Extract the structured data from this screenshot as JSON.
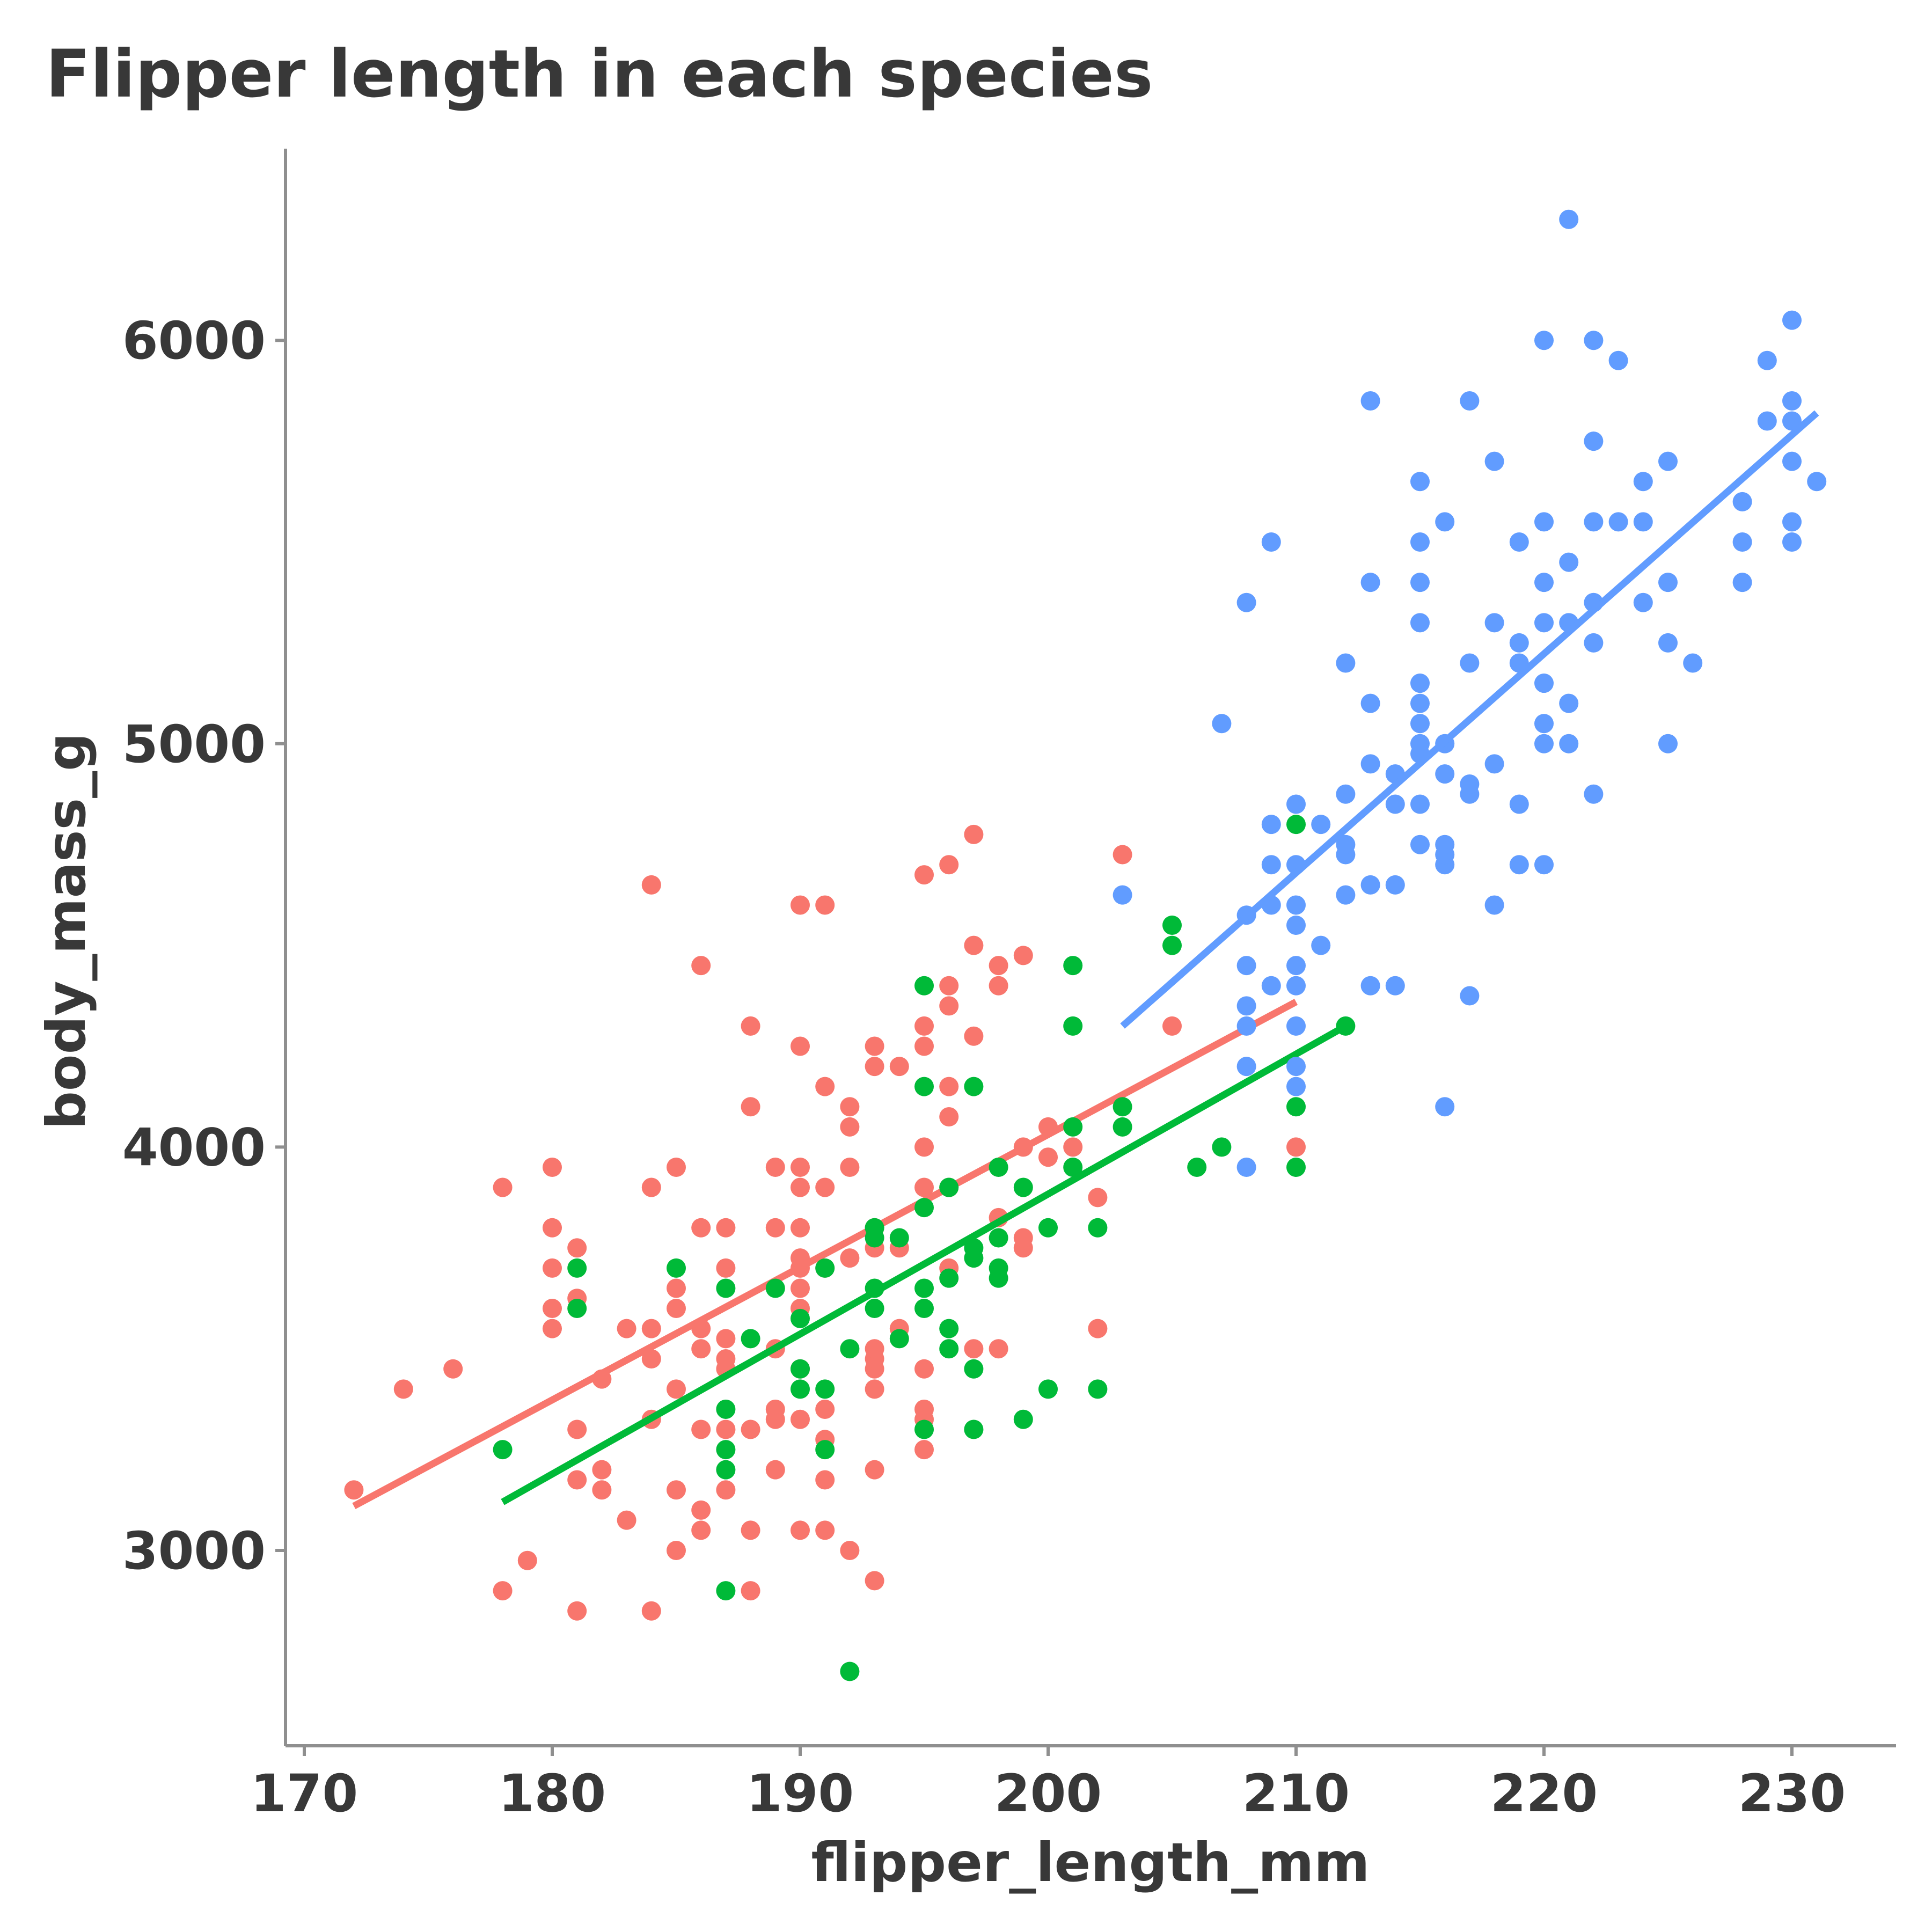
{
  "chart_data": {
    "type": "scatter",
    "title": "Flipper length in each species",
    "xlabel": "flipper_length_mm",
    "ylabel": "body_mass_g",
    "xlim": [
      169,
      234
    ],
    "ylim": [
      2550,
      6500
    ],
    "x_ticks": [
      170,
      180,
      190,
      200,
      210,
      220,
      230
    ],
    "y_ticks": [
      3000,
      4000,
      5000,
      6000
    ],
    "grid": false,
    "legend": "none",
    "series": [
      {
        "color": "#F8766D",
        "trend": [
          [
            172,
            3110
          ],
          [
            210,
            4360
          ]
        ],
        "points": [
          [
            172,
            3150
          ],
          [
            174,
            3400
          ],
          [
            176,
            3450
          ],
          [
            178,
            2900
          ],
          [
            178,
            3900
          ],
          [
            179,
            2975
          ],
          [
            180,
            3550
          ],
          [
            180,
            3600
          ],
          [
            180,
            3700
          ],
          [
            180,
            3800
          ],
          [
            180,
            3950
          ],
          [
            181,
            2850
          ],
          [
            181,
            3175
          ],
          [
            181,
            3300
          ],
          [
            181,
            3625
          ],
          [
            181,
            3750
          ],
          [
            182,
            3150
          ],
          [
            182,
            3200
          ],
          [
            182,
            3425
          ],
          [
            183,
            3075
          ],
          [
            183,
            3550
          ],
          [
            184,
            2850
          ],
          [
            184,
            3325
          ],
          [
            184,
            3475
          ],
          [
            184,
            3550
          ],
          [
            184,
            3900
          ],
          [
            184,
            4650
          ],
          [
            185,
            3000
          ],
          [
            185,
            3150
          ],
          [
            185,
            3400
          ],
          [
            185,
            3600
          ],
          [
            185,
            3650
          ],
          [
            185,
            3950
          ],
          [
            186,
            3050
          ],
          [
            186,
            3100
          ],
          [
            186,
            3300
          ],
          [
            186,
            3500
          ],
          [
            186,
            3550
          ],
          [
            186,
            3800
          ],
          [
            186,
            4450
          ],
          [
            187,
            3150
          ],
          [
            187,
            3300
          ],
          [
            187,
            3450
          ],
          [
            187,
            3475
          ],
          [
            187,
            3525
          ],
          [
            187,
            3700
          ],
          [
            187,
            3800
          ],
          [
            188,
            2900
          ],
          [
            188,
            3050
          ],
          [
            188,
            3300
          ],
          [
            188,
            4100
          ],
          [
            188,
            4300
          ],
          [
            189,
            3200
          ],
          [
            189,
            3325
          ],
          [
            189,
            3350
          ],
          [
            189,
            3500
          ],
          [
            189,
            3800
          ],
          [
            189,
            3950
          ],
          [
            190,
            3050
          ],
          [
            190,
            3325
          ],
          [
            190,
            3450
          ],
          [
            190,
            3600
          ],
          [
            190,
            3650
          ],
          [
            190,
            3700
          ],
          [
            190,
            3725
          ],
          [
            190,
            3800
          ],
          [
            190,
            3900
          ],
          [
            190,
            3950
          ],
          [
            190,
            4250
          ],
          [
            190,
            4600
          ],
          [
            191,
            3050
          ],
          [
            191,
            3175
          ],
          [
            191,
            3275
          ],
          [
            191,
            3350
          ],
          [
            191,
            3700
          ],
          [
            191,
            3900
          ],
          [
            191,
            4150
          ],
          [
            191,
            4600
          ],
          [
            192,
            3000
          ],
          [
            192,
            3725
          ],
          [
            192,
            3950
          ],
          [
            192,
            4050
          ],
          [
            192,
            4100
          ],
          [
            193,
            2925
          ],
          [
            193,
            3200
          ],
          [
            193,
            3400
          ],
          [
            193,
            3450
          ],
          [
            193,
            3475
          ],
          [
            193,
            3500
          ],
          [
            193,
            3750
          ],
          [
            193,
            3800
          ],
          [
            193,
            4200
          ],
          [
            193,
            4250
          ],
          [
            194,
            3550
          ],
          [
            194,
            3750
          ],
          [
            194,
            4200
          ],
          [
            195,
            3250
          ],
          [
            195,
            3325
          ],
          [
            195,
            3350
          ],
          [
            195,
            3450
          ],
          [
            195,
            3900
          ],
          [
            195,
            4000
          ],
          [
            195,
            4250
          ],
          [
            195,
            4300
          ],
          [
            195,
            4675
          ],
          [
            196,
            3700
          ],
          [
            196,
            3900
          ],
          [
            196,
            4075
          ],
          [
            196,
            4150
          ],
          [
            196,
            4350
          ],
          [
            196,
            4400
          ],
          [
            196,
            4700
          ],
          [
            197,
            3500
          ],
          [
            197,
            4275
          ],
          [
            197,
            4500
          ],
          [
            197,
            4775
          ],
          [
            198,
            3500
          ],
          [
            198,
            3825
          ],
          [
            198,
            4400
          ],
          [
            198,
            4450
          ],
          [
            199,
            3750
          ],
          [
            199,
            3775
          ],
          [
            199,
            4000
          ],
          [
            199,
            4475
          ],
          [
            200,
            3975
          ],
          [
            200,
            4050
          ],
          [
            201,
            4000
          ],
          [
            202,
            3550
          ],
          [
            202,
            3875
          ],
          [
            203,
            4725
          ],
          [
            205,
            4300
          ],
          [
            210,
            4000
          ]
        ]
      },
      {
        "color": "#00BA38",
        "trend": [
          [
            178,
            3120
          ],
          [
            212,
            4300
          ]
        ],
        "points": [
          [
            178,
            3250
          ],
          [
            181,
            3600
          ],
          [
            181,
            3700
          ],
          [
            185,
            3700
          ],
          [
            187,
            2900
          ],
          [
            187,
            3200
          ],
          [
            187,
            3250
          ],
          [
            187,
            3350
          ],
          [
            187,
            3650
          ],
          [
            188,
            3525
          ],
          [
            189,
            3650
          ],
          [
            190,
            3400
          ],
          [
            190,
            3450
          ],
          [
            190,
            3575
          ],
          [
            191,
            3250
          ],
          [
            191,
            3400
          ],
          [
            191,
            3700
          ],
          [
            192,
            2700
          ],
          [
            192,
            3500
          ],
          [
            193,
            3600
          ],
          [
            193,
            3650
          ],
          [
            193,
            3775
          ],
          [
            193,
            3800
          ],
          [
            194,
            3525
          ],
          [
            194,
            3775
          ],
          [
            195,
            3300
          ],
          [
            195,
            3600
          ],
          [
            195,
            3650
          ],
          [
            195,
            3850
          ],
          [
            195,
            4150
          ],
          [
            195,
            4400
          ],
          [
            196,
            3500
          ],
          [
            196,
            3550
          ],
          [
            196,
            3675
          ],
          [
            196,
            3900
          ],
          [
            197,
            3300
          ],
          [
            197,
            3450
          ],
          [
            197,
            3725
          ],
          [
            197,
            3750
          ],
          [
            197,
            4150
          ],
          [
            198,
            3675
          ],
          [
            198,
            3700
          ],
          [
            198,
            3775
          ],
          [
            198,
            3950
          ],
          [
            199,
            3325
          ],
          [
            199,
            3900
          ],
          [
            200,
            3400
          ],
          [
            200,
            3800
          ],
          [
            201,
            3950
          ],
          [
            201,
            4050
          ],
          [
            201,
            4300
          ],
          [
            201,
            4450
          ],
          [
            202,
            3400
          ],
          [
            202,
            3800
          ],
          [
            203,
            4050
          ],
          [
            203,
            4100
          ],
          [
            205,
            4500
          ],
          [
            205,
            4550
          ],
          [
            206,
            3950
          ],
          [
            207,
            4000
          ],
          [
            210,
            3950
          ],
          [
            210,
            4100
          ],
          [
            210,
            4800
          ],
          [
            212,
            4300
          ]
        ]
      },
      {
        "color": "#619CFF",
        "trend": [
          [
            203,
            4300
          ],
          [
            231,
            5820
          ]
        ],
        "points": [
          [
            203,
            4625
          ],
          [
            207,
            5050
          ],
          [
            208,
            3950
          ],
          [
            208,
            4200
          ],
          [
            208,
            4300
          ],
          [
            208,
            4350
          ],
          [
            208,
            4450
          ],
          [
            208,
            4575
          ],
          [
            208,
            5350
          ],
          [
            209,
            4400
          ],
          [
            209,
            4600
          ],
          [
            209,
            4700
          ],
          [
            209,
            4800
          ],
          [
            209,
            5500
          ],
          [
            210,
            4150
          ],
          [
            210,
            4200
          ],
          [
            210,
            4300
          ],
          [
            210,
            4400
          ],
          [
            210,
            4450
          ],
          [
            210,
            4550
          ],
          [
            210,
            4600
          ],
          [
            210,
            4700
          ],
          [
            210,
            4850
          ],
          [
            211,
            4500
          ],
          [
            211,
            4800
          ],
          [
            212,
            4625
          ],
          [
            212,
            4725
          ],
          [
            212,
            4750
          ],
          [
            212,
            4875
          ],
          [
            212,
            5200
          ],
          [
            213,
            4400
          ],
          [
            213,
            4650
          ],
          [
            213,
            4950
          ],
          [
            213,
            5100
          ],
          [
            213,
            5400
          ],
          [
            213,
            5850
          ],
          [
            214,
            4400
          ],
          [
            214,
            4650
          ],
          [
            214,
            4850
          ],
          [
            214,
            4925
          ],
          [
            215,
            4750
          ],
          [
            215,
            4850
          ],
          [
            215,
            4975
          ],
          [
            215,
            5000
          ],
          [
            215,
            5050
          ],
          [
            215,
            5100
          ],
          [
            215,
            5150
          ],
          [
            215,
            5300
          ],
          [
            215,
            5400
          ],
          [
            215,
            5500
          ],
          [
            215,
            5650
          ],
          [
            216,
            4100
          ],
          [
            216,
            4700
          ],
          [
            216,
            4725
          ],
          [
            216,
            4750
          ],
          [
            216,
            4925
          ],
          [
            216,
            5000
          ],
          [
            216,
            5550
          ],
          [
            217,
            4375
          ],
          [
            217,
            4875
          ],
          [
            217,
            4900
          ],
          [
            217,
            5200
          ],
          [
            217,
            5850
          ],
          [
            218,
            4600
          ],
          [
            218,
            4950
          ],
          [
            218,
            5300
          ],
          [
            218,
            5700
          ],
          [
            219,
            4700
          ],
          [
            219,
            4850
          ],
          [
            219,
            5200
          ],
          [
            219,
            5250
          ],
          [
            219,
            5500
          ],
          [
            220,
            4700
          ],
          [
            220,
            5000
          ],
          [
            220,
            5050
          ],
          [
            220,
            5150
          ],
          [
            220,
            5300
          ],
          [
            220,
            5400
          ],
          [
            220,
            5550
          ],
          [
            220,
            6000
          ],
          [
            221,
            5000
          ],
          [
            221,
            5100
          ],
          [
            221,
            5300
          ],
          [
            221,
            5450
          ],
          [
            221,
            6300
          ],
          [
            222,
            4875
          ],
          [
            222,
            5250
          ],
          [
            222,
            5350
          ],
          [
            222,
            5550
          ],
          [
            222,
            5750
          ],
          [
            222,
            6000
          ],
          [
            223,
            5550
          ],
          [
            223,
            5950
          ],
          [
            224,
            5350
          ],
          [
            224,
            5550
          ],
          [
            224,
            5650
          ],
          [
            225,
            5000
          ],
          [
            225,
            5250
          ],
          [
            225,
            5400
          ],
          [
            225,
            5700
          ],
          [
            226,
            5200
          ],
          [
            228,
            5400
          ],
          [
            228,
            5500
          ],
          [
            228,
            5600
          ],
          [
            229,
            5800
          ],
          [
            229,
            5950
          ],
          [
            230,
            5500
          ],
          [
            230,
            5550
          ],
          [
            230,
            5700
          ],
          [
            230,
            5800
          ],
          [
            230,
            5850
          ],
          [
            230,
            6050
          ],
          [
            231,
            5650
          ]
        ]
      }
    ]
  }
}
